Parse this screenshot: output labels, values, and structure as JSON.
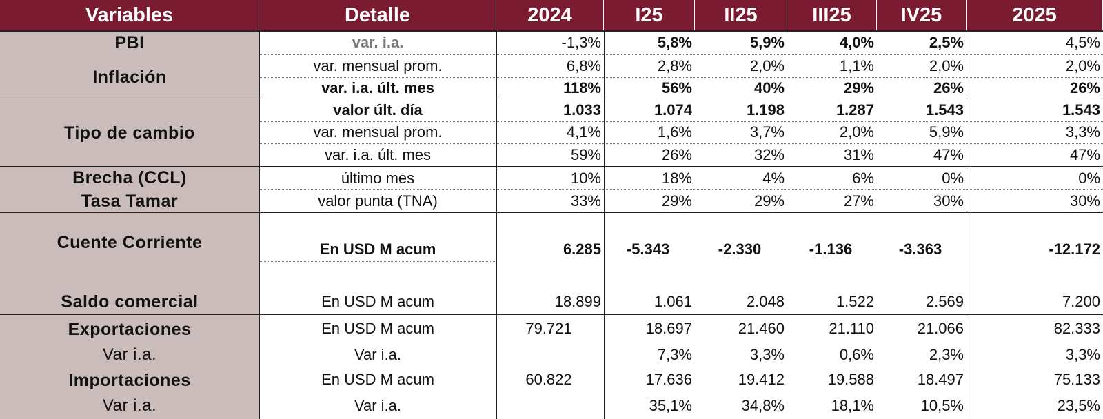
{
  "headers": [
    "Variables",
    "Detalle",
    "2024",
    "I25",
    "II25",
    "III25",
    "IV25",
    "2025"
  ],
  "labels": {
    "pbi": "PBI",
    "inflacion": "Inflación",
    "tipo_cambio": "Tipo de cambio",
    "brecha": "Brecha (CCL)",
    "tamar": "Tasa Tamar",
    "cuenta_corriente": "Cuente Corriente",
    "saldo_comercial": "Saldo comercial",
    "exportaciones": "Exportaciones",
    "exp_var": "Var i.a.",
    "importaciones": "Importaciones",
    "imp_var": "Var i.a."
  },
  "rows": [
    {
      "detail": "var. i.a.",
      "values": [
        "-1,3%",
        "5,8%",
        "5,9%",
        "4,0%",
        "2,5%",
        "4,5%"
      ]
    },
    {
      "detail": "var. mensual prom.",
      "values": [
        "6,8%",
        "2,8%",
        "2,0%",
        "1,1%",
        "2,0%",
        "2,0%"
      ]
    },
    {
      "detail": "var. i.a. últ. mes",
      "values": [
        "118%",
        "56%",
        "40%",
        "29%",
        "26%",
        "26%"
      ]
    },
    {
      "detail": "valor últ. día",
      "values": [
        "1.033",
        "1.074",
        "1.198",
        "1.287",
        "1.543",
        "1.543"
      ]
    },
    {
      "detail": "var. mensual prom.",
      "values": [
        "4,1%",
        "1,6%",
        "3,7%",
        "2,0%",
        "5,9%",
        "3,3%"
      ]
    },
    {
      "detail": "var. i.a. últ. mes",
      "values": [
        "59%",
        "26%",
        "32%",
        "31%",
        "47%",
        "47%"
      ]
    },
    {
      "detail": "último mes",
      "values": [
        "10%",
        "18%",
        "4%",
        "6%",
        "0%",
        "0%"
      ]
    },
    {
      "detail": "valor punta (TNA)",
      "values": [
        "33%",
        "29%",
        "29%",
        "27%",
        "30%",
        "30%"
      ]
    },
    {
      "detail": "En USD M acum",
      "values": [
        "6.285",
        "-5.343",
        "-2.330",
        "-1.136",
        "-3.363",
        "-12.172"
      ]
    },
    {
      "detail": "En USD M acum",
      "values": [
        "18.899",
        "1.061",
        "2.048",
        "1.522",
        "2.569",
        "7.200"
      ]
    },
    {
      "detail": "En USD M acum",
      "values": [
        "79.721",
        "18.697",
        "21.460",
        "21.110",
        "21.066",
        "82.333"
      ]
    },
    {
      "detail": "Var i.a.",
      "values": [
        "",
        "7,3%",
        "3,3%",
        "0,6%",
        "2,3%",
        "3,3%"
      ]
    },
    {
      "detail": "En USD M acum",
      "values": [
        "60.822",
        "17.636",
        "19.412",
        "19.588",
        "18.497",
        "75.133"
      ]
    },
    {
      "detail": "Var i.a.",
      "values": [
        "",
        "35,1%",
        "34,8%",
        "18,1%",
        "10,5%",
        "23,5%"
      ]
    }
  ]
}
